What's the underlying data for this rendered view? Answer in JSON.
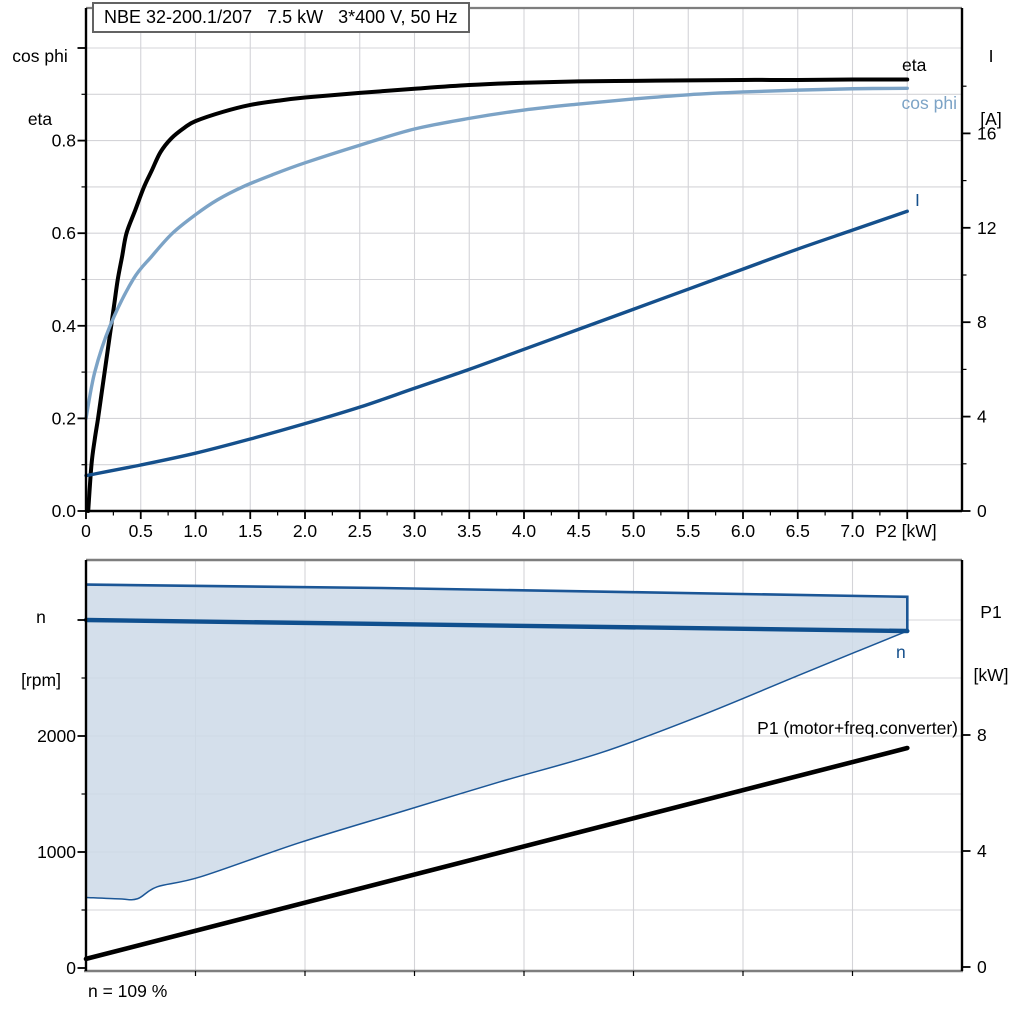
{
  "title_box": {
    "text": "NBE 32-200.1/207   7.5 kW   3*400 V, 50 Hz"
  },
  "colors": {
    "eta": "#000000",
    "cos_phi": "#7CA3C6",
    "current": "#15508C",
    "speed": "#0F4F8E",
    "p1": "#000000",
    "envelope_fill": "#CDD9E7",
    "envelope_stroke": "#1B5696",
    "grid": "#D4D4D8",
    "frame": "#7E7E7E",
    "axis": "#000000"
  },
  "chart_data": [
    {
      "id": "motor-efficiency-chart",
      "type": "line",
      "grid": true,
      "x_axis": {
        "label": "P2 [kW]",
        "range": [
          0,
          8
        ],
        "tick_labels": [
          "0",
          "0.5",
          "1.0",
          "1.5",
          "2.0",
          "2.5",
          "3.0",
          "3.5",
          "4.0",
          "4.5",
          "5.0",
          "5.5",
          "6.0",
          "6.5",
          "7.0"
        ],
        "tick_values": [
          0,
          0.5,
          1.0,
          1.5,
          2.0,
          2.5,
          3.0,
          3.5,
          4.0,
          4.5,
          5.0,
          5.5,
          6.0,
          6.5,
          7.0
        ],
        "grid_step": 0.5
      },
      "y_left": {
        "label": "cos phi / eta",
        "label_lines": [
          "cos phi",
          "eta"
        ],
        "range": [
          0,
          1.086
        ],
        "tick_labels": [
          "0.0",
          "0.2",
          "0.4",
          "0.6",
          "0.8"
        ],
        "tick_values": [
          0,
          0.2,
          0.4,
          0.6,
          0.8
        ],
        "grid_step": 0.1
      },
      "y_right": {
        "label": "I [A]",
        "label_lines": [
          "I",
          "[A]"
        ],
        "range": [
          0,
          21.3
        ],
        "tick_labels": [
          "0",
          "4",
          "8",
          "12",
          "16"
        ],
        "tick_values": [
          0,
          4,
          8,
          12,
          16
        ]
      },
      "series": [
        {
          "name": "eta",
          "label": "eta",
          "axis": "left",
          "color": "#000000",
          "width": 4,
          "points": [
            [
              0.02,
              0.0
            ],
            [
              0.05,
              0.1
            ],
            [
              0.08,
              0.155
            ],
            [
              0.11,
              0.2
            ],
            [
              0.14,
              0.25
            ],
            [
              0.17,
              0.3
            ],
            [
              0.2,
              0.35
            ],
            [
              0.23,
              0.4
            ],
            [
              0.26,
              0.45
            ],
            [
              0.29,
              0.5
            ],
            [
              0.33,
              0.55
            ],
            [
              0.37,
              0.6
            ],
            [
              0.45,
              0.65
            ],
            [
              0.53,
              0.7
            ],
            [
              0.6,
              0.735
            ],
            [
              0.68,
              0.775
            ],
            [
              0.78,
              0.805
            ],
            [
              0.9,
              0.828
            ],
            [
              1.0,
              0.842
            ],
            [
              1.25,
              0.862
            ],
            [
              1.5,
              0.877
            ],
            [
              1.75,
              0.886
            ],
            [
              2.0,
              0.893
            ],
            [
              2.5,
              0.903
            ],
            [
              3.0,
              0.912
            ],
            [
              3.5,
              0.92
            ],
            [
              4.0,
              0.925
            ],
            [
              4.5,
              0.928
            ],
            [
              5.0,
              0.929
            ],
            [
              5.5,
              0.93
            ],
            [
              6.0,
              0.931
            ],
            [
              6.5,
              0.931
            ],
            [
              7.0,
              0.932
            ],
            [
              7.5,
              0.932
            ]
          ]
        },
        {
          "name": "cos phi",
          "label": "cos phi",
          "axis": "left",
          "color": "#7CA3C6",
          "width": 3.4,
          "points": [
            [
              0.0,
              0.2
            ],
            [
              0.08,
              0.3
            ],
            [
              0.22,
              0.4
            ],
            [
              0.43,
              0.5
            ],
            [
              0.6,
              0.55
            ],
            [
              0.79,
              0.6
            ],
            [
              1.0,
              0.64
            ],
            [
              1.2,
              0.672
            ],
            [
              1.43,
              0.7
            ],
            [
              1.7,
              0.726
            ],
            [
              2.0,
              0.752
            ],
            [
              2.5,
              0.79
            ],
            [
              3.0,
              0.825
            ],
            [
              3.5,
              0.848
            ],
            [
              4.0,
              0.866
            ],
            [
              4.5,
              0.879
            ],
            [
              5.0,
              0.89
            ],
            [
              5.5,
              0.899
            ],
            [
              6.0,
              0.905
            ],
            [
              6.5,
              0.909
            ],
            [
              7.0,
              0.912
            ],
            [
              7.5,
              0.913
            ]
          ]
        },
        {
          "name": "I",
          "label": "I",
          "axis": "right",
          "color": "#15508C",
          "width": 3.4,
          "points": [
            [
              0.0,
              1.5
            ],
            [
              0.5,
              1.95
            ],
            [
              1.0,
              2.45
            ],
            [
              1.5,
              3.05
            ],
            [
              2.0,
              3.7
            ],
            [
              2.5,
              4.4
            ],
            [
              3.0,
              5.2
            ],
            [
              3.5,
              6.0
            ],
            [
              4.0,
              6.85
            ],
            [
              4.5,
              7.7
            ],
            [
              5.0,
              8.55
            ],
            [
              5.5,
              9.4
            ],
            [
              6.0,
              10.25
            ],
            [
              6.5,
              11.1
            ],
            [
              7.0,
              11.9
            ],
            [
              7.5,
              12.7
            ]
          ]
        }
      ]
    },
    {
      "id": "speed-power-chart",
      "type": "line",
      "grid": true,
      "annotation": "n = 109 %",
      "x_axis": {
        "label": "",
        "range": [
          0,
          8
        ],
        "tick_labels": [],
        "tick_values": [
          1,
          2,
          3,
          4,
          5,
          6,
          7
        ],
        "grid_step": 1
      },
      "y_left": {
        "label": "n [rpm]",
        "label_lines": [
          "n",
          "[rpm]"
        ],
        "range": [
          -26,
          3517
        ],
        "tick_labels": [
          "0",
          "1000",
          "2000"
        ],
        "tick_values": [
          0,
          1000,
          2000
        ],
        "extra_tick_values": [
          3000
        ],
        "grid_step": 500
      },
      "y_right": {
        "label": "P1 [kW]",
        "label_lines": [
          "P1",
          "[kW]"
        ],
        "range": [
          -0.14,
          14.0
        ],
        "tick_labels": [
          "0",
          "4",
          "8"
        ],
        "tick_values": [
          0,
          4,
          8
        ]
      },
      "series": [
        {
          "name": "n",
          "label": "n",
          "axis": "left",
          "color": "#0F4F8E",
          "width": 4.4,
          "points": [
            [
              0,
              3000
            ],
            [
              7.5,
              2905
            ]
          ]
        },
        {
          "name": "P1",
          "label": "P1 (motor+freq.converter)",
          "axis": "right",
          "color": "#000000",
          "width": 4.6,
          "points": [
            [
              0,
              0.28
            ],
            [
              7.5,
              7.55
            ]
          ]
        }
      ],
      "envelope": {
        "name": "allowed-operating-range",
        "fill": "#CDD9E7",
        "stroke": "#1B5696",
        "upper": [
          [
            0,
            3305
          ],
          [
            2.7,
            3276
          ],
          [
            5.0,
            3240
          ],
          [
            7.5,
            3200
          ]
        ],
        "lower": [
          [
            0,
            608
          ],
          [
            0.3,
            596
          ],
          [
            0.47,
            597
          ],
          [
            0.65,
            700
          ],
          [
            1.05,
            787
          ],
          [
            1.95,
            1080
          ],
          [
            2.87,
            1345
          ],
          [
            3.78,
            1605
          ],
          [
            4.7,
            1855
          ],
          [
            5.6,
            2170
          ],
          [
            6.5,
            2520
          ],
          [
            7.07,
            2740
          ],
          [
            7.5,
            2905
          ]
        ]
      }
    }
  ]
}
